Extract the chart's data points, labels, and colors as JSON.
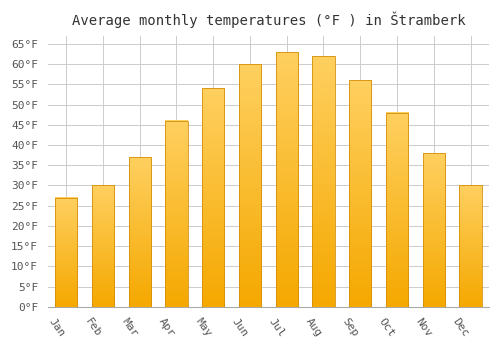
{
  "title": "Average monthly temperatures (°F ) in Štramberk",
  "months": [
    "Jan",
    "Feb",
    "Mar",
    "Apr",
    "May",
    "Jun",
    "Jul",
    "Aug",
    "Sep",
    "Oct",
    "Nov",
    "Dec"
  ],
  "values": [
    27,
    30,
    37,
    46,
    54,
    60,
    63,
    62,
    56,
    48,
    38,
    30
  ],
  "bar_color_bottom": "#F5A800",
  "bar_color_top": "#FFD060",
  "bar_edge_color": "#D4900A",
  "ylim_min": 0,
  "ylim_max": 67,
  "ytick_step": 5,
  "ytick_max": 65,
  "background_color": "#ffffff",
  "plot_bg_color": "#ffffff",
  "grid_color": "#cccccc",
  "title_fontsize": 10,
  "tick_fontsize": 8,
  "bar_width": 0.6,
  "xlabel_rotation": -55
}
